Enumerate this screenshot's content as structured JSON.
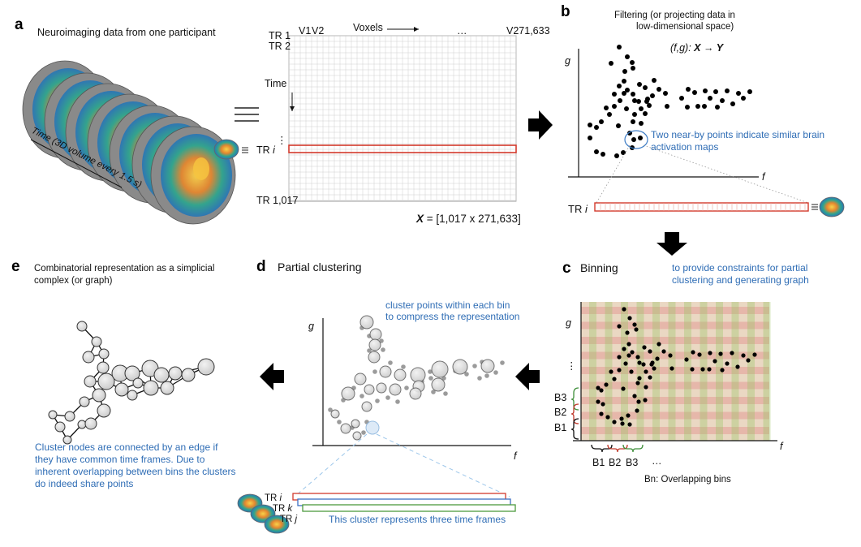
{
  "panel_a": {
    "letter": "a",
    "title": "Neuroimaging data from one participant",
    "time_caption": "Time (3D volume every 1.5 s)",
    "matrix": {
      "col_first": "V1",
      "col_second": "V2",
      "col_ellipsis": "…",
      "col_last": "V271,633",
      "voxels_label": "Voxels",
      "time_label": "Time",
      "row_1": "TR 1",
      "row_2": "TR 2",
      "row_i_prefix": "TR ",
      "row_i_var": "i",
      "row_dots": "⋮",
      "row_last": "TR 1,017",
      "equation_var": "X",
      "equation_rest": " = [1,017 x 271,633]"
    }
  },
  "panel_b": {
    "letter": "b",
    "title_line1": "Filtering (or projecting data in",
    "title_line2": "low-dimensional space)",
    "mapping_fg": "(f,g): ",
    "mapping_xy": "X → Y",
    "axis_x": "f",
    "axis_y": "g",
    "note_line1": "Two near-by points indicate similar brain",
    "note_line2": "activation maps",
    "row_label_prefix": "TR ",
    "row_label_var": "i"
  },
  "panel_c": {
    "letter": "c",
    "title": "Binning",
    "note_line1": "to provide constraints for partial",
    "note_line2": "clustering and generating graph",
    "axis_x": "f",
    "axis_y": "g",
    "dots": "⋮",
    "row_bins": [
      "B3",
      "B2",
      "B1"
    ],
    "col_bins": [
      "B1",
      "B2",
      "B3"
    ],
    "col_ellipsis": "…",
    "caption": "Bn: Overlapping bins"
  },
  "panel_d": {
    "letter": "d",
    "title": "Partial clustering",
    "note_line1": "cluster points within each bin",
    "note_line2": "to compress the representation",
    "axis_x": "f",
    "axis_y": "g",
    "tr_rows": [
      {
        "prefix": "TR ",
        "var": "i"
      },
      {
        "prefix": "TR ",
        "var": "k"
      },
      {
        "prefix": "TR ",
        "var": "j"
      }
    ],
    "cluster_note": "This cluster represents three time frames"
  },
  "panel_e": {
    "letter": "e",
    "title_line1": "Combinatorial representation as a simplicial",
    "title_line2": "complex (or graph)",
    "note_lines": [
      "Cluster nodes are connected by an edge if",
      "they have common time frames. Due to",
      "inherent overlapping between bins the clusters",
      "do indeed share points"
    ]
  },
  "colors": {
    "blue_text": "#2f6db5",
    "row_highlight": "#d33a2c",
    "bin_red": "#e07a7a",
    "bin_green": "#8fbf5a",
    "bin_fill": "#d7b58f",
    "brace_red": "#c0392b",
    "brace_green": "#3f8f3a",
    "cluster_blue": "#3c6fc4",
    "cluster_green": "#4e9a3e"
  }
}
